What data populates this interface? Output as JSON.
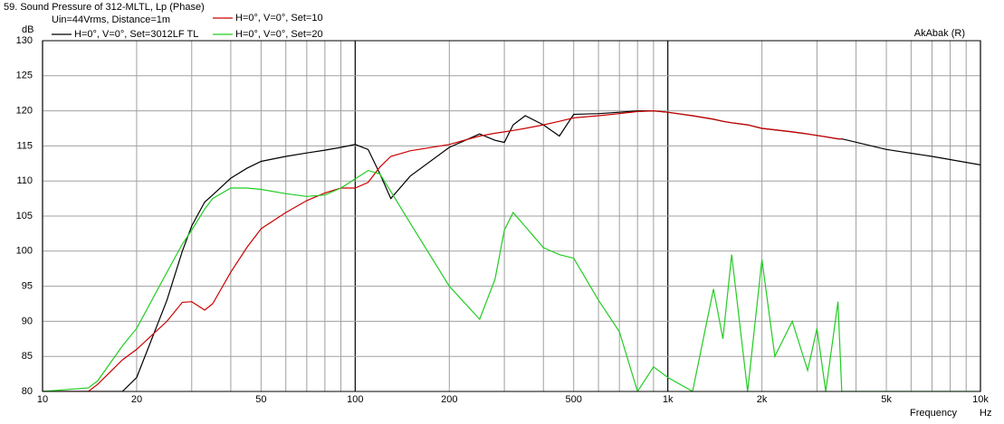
{
  "chart_data": {
    "type": "line",
    "title": "59. Sound Pressure of 312-MLTL, Lp (Phase)",
    "subtitle": "Uin=44Vrms, Distance=1m",
    "annotation": "AkAbak (R)",
    "y_label": "dB",
    "x_label": "Frequency",
    "x_unit": "Hz",
    "log_x": true,
    "grid": true,
    "xlim": [
      10,
      10000
    ],
    "ylim": [
      80,
      130
    ],
    "yticks": [
      80,
      85,
      90,
      95,
      100,
      105,
      110,
      115,
      120,
      125,
      130
    ],
    "xticks": [
      10,
      20,
      50,
      100,
      200,
      500,
      {
        "value": 1000,
        "label": "1k"
      },
      {
        "value": 2000,
        "label": "2k"
      },
      {
        "value": 5000,
        "label": "5k"
      },
      {
        "value": 10000,
        "label": "10k"
      }
    ],
    "xgrid": [
      10,
      20,
      30,
      40,
      50,
      60,
      70,
      80,
      90,
      100,
      200,
      300,
      400,
      500,
      600,
      700,
      800,
      900,
      1000,
      2000,
      3000,
      4000,
      5000,
      6000,
      7000,
      8000,
      9000,
      10000
    ],
    "x": [
      10,
      14,
      15,
      18,
      20,
      25,
      28,
      30,
      33,
      35,
      40,
      45,
      50,
      60,
      70,
      80,
      90,
      100,
      110,
      120,
      130,
      150,
      200,
      250,
      280,
      300,
      320,
      350,
      400,
      450,
      500,
      600,
      700,
      800,
      900,
      1000,
      1200,
      1400,
      1500,
      1600,
      1800,
      2000,
      2200,
      2500,
      2800,
      3000,
      3200,
      3500,
      3600,
      5000,
      7000,
      10000
    ],
    "series": [
      {
        "name": "H=0°, V=0°, Set=3012LF TL",
        "color": "#000000",
        "values": [
          80,
          80,
          80,
          80,
          82,
          93,
          100,
          103.6,
          107,
          108,
          110.4,
          111.8,
          112.8,
          113.5,
          114,
          114.4,
          114.8,
          115.2,
          114.5,
          111,
          107.5,
          110.7,
          114.8,
          116.7,
          115.8,
          115.5,
          118,
          119.3,
          118,
          116.4,
          119.5,
          119.6,
          119.8,
          120,
          120,
          119.8,
          119.3,
          118.8,
          118.5,
          118.3,
          118,
          117.5,
          117.3,
          117,
          116.7,
          116.5,
          116.3,
          116,
          116,
          114.5,
          113.5,
          112.3
        ]
      },
      {
        "name": "H=0°, V=0°, Set=10",
        "color": "#cc0000",
        "values": [
          80,
          80,
          81,
          84.5,
          86,
          90,
          92.7,
          92.8,
          91.6,
          92.5,
          97,
          100.5,
          103.2,
          105.5,
          107.2,
          108.3,
          109,
          109,
          109.8,
          112,
          113.5,
          114.3,
          115.2,
          116.4,
          116.8,
          117,
          117.2,
          117.5,
          118,
          118.5,
          119,
          119.3,
          119.6,
          119.9,
          120,
          119.8,
          119.3,
          118.8,
          118.5,
          118.3,
          118,
          117.5,
          117.3,
          117,
          116.7,
          116.5,
          116.3,
          116,
          116,
          null,
          null,
          null
        ]
      },
      {
        "name": "H=0°, V=0°, Set=20",
        "color": "#22cc22",
        "values": [
          80,
          80.5,
          81.5,
          86.5,
          89,
          97,
          101,
          103,
          106,
          107.5,
          109,
          109,
          108.8,
          108.2,
          107.8,
          108,
          109,
          110.3,
          111.5,
          111,
          108.5,
          104,
          95,
          90.3,
          96,
          103,
          105.5,
          103.5,
          100.5,
          99.5,
          99,
          93,
          88.5,
          80,
          83.5,
          82,
          80,
          94.6,
          87.5,
          99.5,
          80,
          98.8,
          85,
          90,
          83,
          89,
          80,
          92.8,
          80,
          80,
          80,
          80
        ]
      }
    ]
  }
}
